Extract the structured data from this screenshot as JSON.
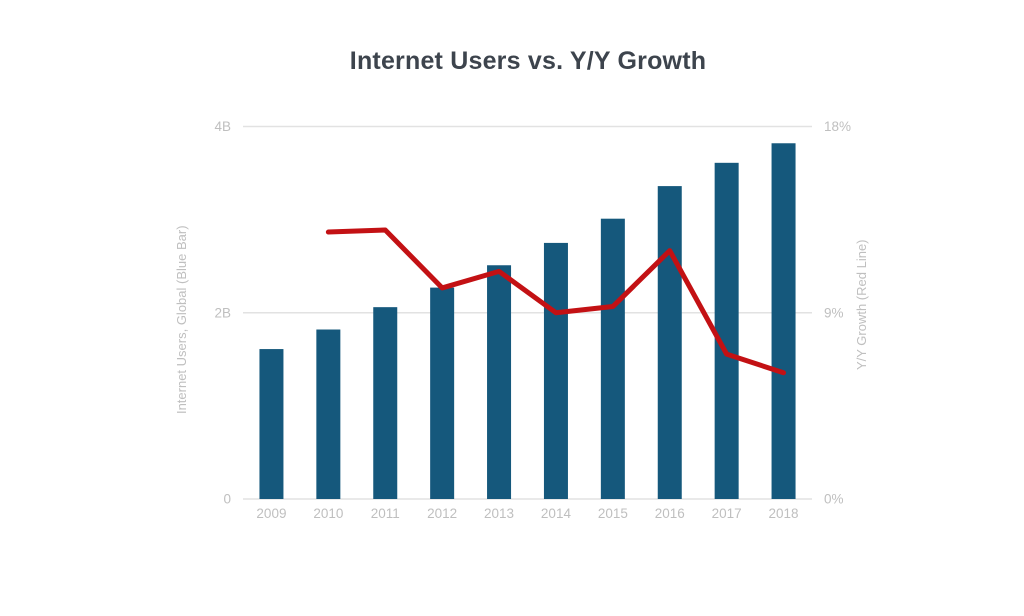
{
  "chart_data": {
    "type": "combo-bar-line",
    "title": "Internet Users vs. Y/Y Growth",
    "categories": [
      "2009",
      "2010",
      "2011",
      "2012",
      "2013",
      "2014",
      "2015",
      "2016",
      "2017",
      "2018"
    ],
    "series": [
      {
        "name": "Internet Users, Global",
        "type": "bar",
        "axis": "left",
        "unit": "billions",
        "values": [
          1.61,
          1.82,
          2.06,
          2.27,
          2.51,
          2.75,
          3.01,
          3.36,
          3.61,
          3.82
        ]
      },
      {
        "name": "Y/Y Growth",
        "type": "line",
        "axis": "right",
        "unit": "%",
        "values": [
          null,
          12.9,
          13.0,
          10.2,
          11.0,
          9.0,
          9.3,
          12.0,
          7.0,
          6.1
        ]
      }
    ],
    "y_left": {
      "title": "Internet Users, Global (Blue Bar)",
      "range": [
        0,
        4
      ],
      "ticks": [
        {
          "v": 0,
          "label": "0"
        },
        {
          "v": 2,
          "label": "2B"
        },
        {
          "v": 4,
          "label": "4B"
        }
      ]
    },
    "y_right": {
      "title": "Y/Y Growth (Red Line)",
      "range": [
        0,
        18
      ],
      "ticks": [
        {
          "v": 0,
          "label": "0%"
        },
        {
          "v": 9,
          "label": "9%"
        },
        {
          "v": 18,
          "label": "18%"
        }
      ]
    },
    "grid": true,
    "legend": "none"
  },
  "colors": {
    "bar": "#15587c",
    "line": "#c31114",
    "grid": "#e2e2e2",
    "axis_text": "#bfbfbf",
    "title_text": "#3d444d",
    "background": "#ffffff"
  }
}
